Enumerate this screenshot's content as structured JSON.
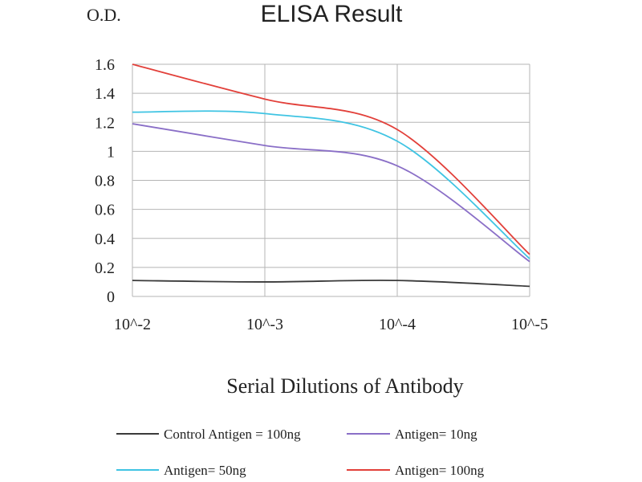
{
  "chart_data": {
    "type": "line",
    "title": "ELISA Result",
    "ylabel": "O.D.",
    "xlabel": "Serial Dilutions of Antibody",
    "x": [
      "10^-2",
      "10^-3",
      "10^-4",
      "10^-5"
    ],
    "ylim": [
      0,
      1.6
    ],
    "yticks": [
      "0",
      "0.2",
      "0.4",
      "0.6",
      "0.8",
      "1",
      "1.2",
      "1.4",
      "1.6"
    ],
    "grid": "vertical and horizontal",
    "legend_position": "bottom",
    "series": [
      {
        "name": "Control Antigen = 100ng",
        "color": "#3a3a3a",
        "values": [
          0.11,
          0.1,
          0.11,
          0.07
        ]
      },
      {
        "name": "Antigen= 10ng",
        "color": "#8a6fc7",
        "values": [
          1.19,
          1.04,
          0.9,
          0.24
        ]
      },
      {
        "name": "Antigen= 50ng",
        "color": "#3fc4e3",
        "values": [
          1.27,
          1.26,
          1.07,
          0.26
        ]
      },
      {
        "name": "Antigen= 100ng",
        "color": "#e2403a",
        "values": [
          1.6,
          1.36,
          1.15,
          0.29
        ]
      }
    ]
  }
}
